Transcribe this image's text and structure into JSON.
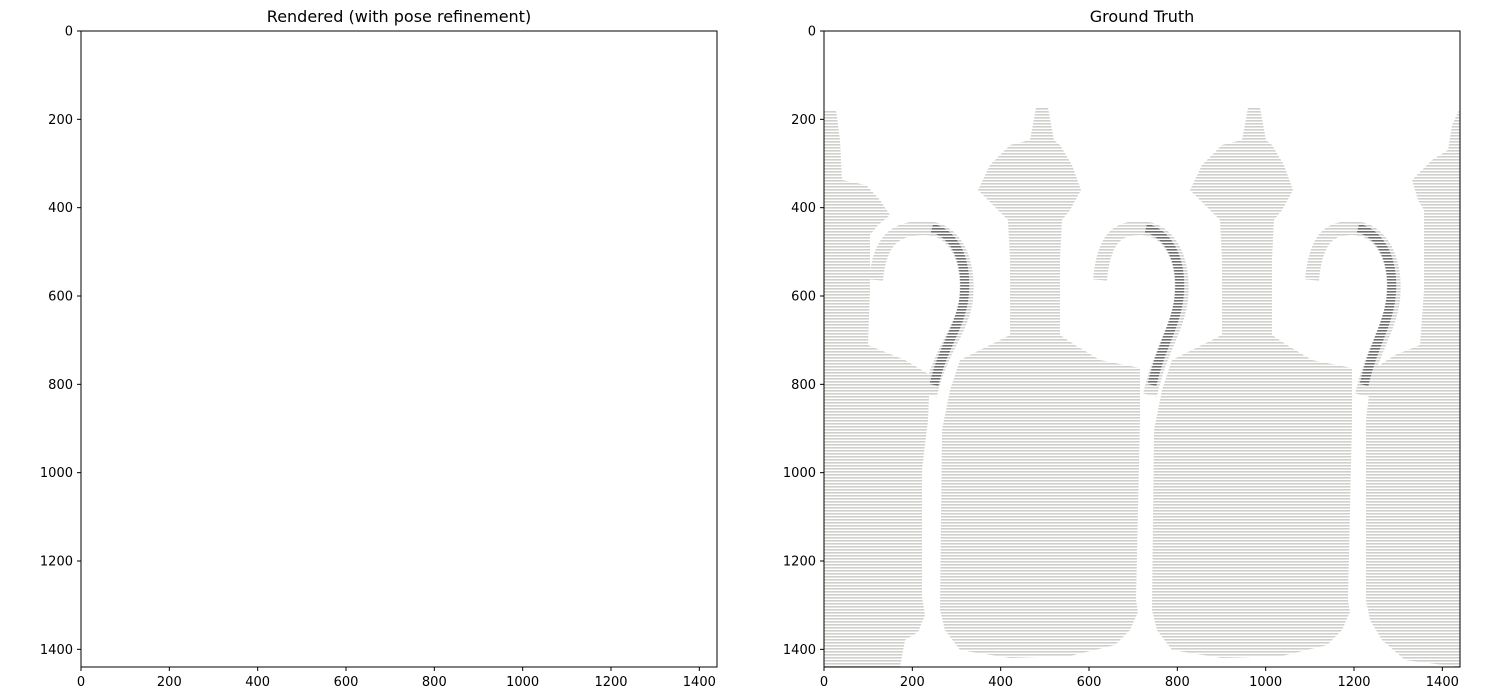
{
  "chart_data": [
    {
      "type": "image",
      "title": "Rendered (with pose refinement)",
      "content": "blank",
      "xlim": [
        0,
        1440
      ],
      "ylim": [
        1440,
        0
      ],
      "xticks": [
        0,
        200,
        400,
        600,
        800,
        1000,
        1200,
        1400
      ],
      "yticks": [
        0,
        200,
        400,
        600,
        800,
        1000,
        1200,
        1400
      ]
    },
    {
      "type": "image",
      "title": "Ground Truth",
      "content": "grayscale vases with handles on striped scan-line texture",
      "xlim": [
        0,
        1440
      ],
      "ylim": [
        1440,
        0
      ],
      "xticks": [
        0,
        200,
        400,
        600,
        800,
        1000,
        1200,
        1400
      ],
      "yticks": [
        0,
        200,
        400,
        600,
        800,
        1000,
        1200,
        1400
      ],
      "colors": {
        "body": "#cfcfcb",
        "shadow": "#6f6f6f",
        "stripe": "#ffffff"
      }
    }
  ]
}
